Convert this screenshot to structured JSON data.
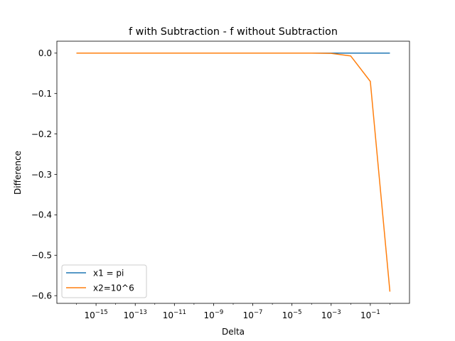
{
  "chart_data": {
    "type": "line",
    "title": "f with Subtraction - f without Subtraction",
    "xlabel": "Delta",
    "ylabel": "Difference",
    "xscale": "log",
    "xlim": [
      1e-17,
      10
    ],
    "ylim": [
      -0.619,
      0.0295
    ],
    "grid": false,
    "legend": "lower-left",
    "x": [
      1e-16,
      1e-15,
      1e-14,
      1e-13,
      1e-12,
      1e-11,
      1e-10,
      1e-09,
      1e-08,
      1e-07,
      1e-06,
      1e-05,
      0.0001,
      0.001,
      0.01,
      0.1,
      1
    ],
    "series": [
      {
        "name": "x1 = pi",
        "color": "#1f77b4",
        "values": [
          0,
          0,
          0,
          0,
          0,
          0,
          0,
          0,
          0,
          0,
          0,
          0,
          0,
          0,
          0,
          0,
          0
        ]
      },
      {
        "name": "x2=10^6",
        "color": "#ff7f0e",
        "values": [
          0,
          0,
          0,
          0,
          0,
          0,
          0,
          0,
          0,
          0,
          0,
          0,
          0,
          -0.0007,
          -0.007,
          -0.07,
          -0.59
        ]
      }
    ],
    "xticks": [
      {
        "exp": -15,
        "base": "10",
        "sup": "−15"
      },
      {
        "exp": -13,
        "base": "10",
        "sup": "−13"
      },
      {
        "exp": -11,
        "base": "10",
        "sup": "−11"
      },
      {
        "exp": -9,
        "base": "10",
        "sup": "−9"
      },
      {
        "exp": -7,
        "base": "10",
        "sup": "−7"
      },
      {
        "exp": -5,
        "base": "10",
        "sup": "−5"
      },
      {
        "exp": -3,
        "base": "10",
        "sup": "−3"
      },
      {
        "exp": -1,
        "base": "10",
        "sup": "−1"
      }
    ],
    "yticks": [
      {
        "value": 0.0,
        "label": "0.0"
      },
      {
        "value": -0.1,
        "label": "−0.1"
      },
      {
        "value": -0.2,
        "label": "−0.2"
      },
      {
        "value": -0.3,
        "label": "−0.3"
      },
      {
        "value": -0.4,
        "label": "−0.4"
      },
      {
        "value": -0.5,
        "label": "−0.5"
      },
      {
        "value": -0.6,
        "label": "−0.6"
      }
    ]
  }
}
